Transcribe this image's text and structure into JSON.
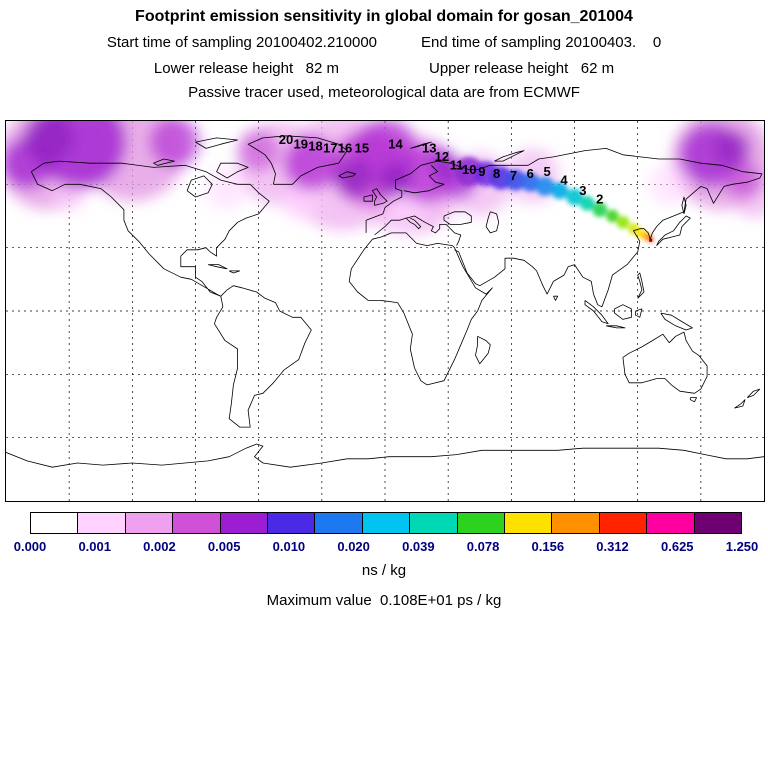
{
  "header": {
    "title": "Footprint emission sensitivity in global domain for gosan_201004",
    "start_time": "Start time of sampling 20100402.210000",
    "end_time": "End time of sampling 20100403.    0",
    "lower_release": "Lower release height   82 m",
    "upper_release": "Upper release height   62 m",
    "tracer_line": "Passive tracer used, meteorological data are from ECMWF"
  },
  "colorbar": {
    "tick_labels": [
      "0.000",
      "0.001",
      "0.002",
      "0.005",
      "0.010",
      "0.020",
      "0.039",
      "0.078",
      "0.156",
      "0.312",
      "0.625",
      "1.250"
    ],
    "colors": [
      "#ffffff",
      "#ffd2ff",
      "#efa0ef",
      "#d050d8",
      "#9c1ed2",
      "#4b2ae6",
      "#1e78f0",
      "#00c3f0",
      "#00d7b4",
      "#2dd21e",
      "#ffe100",
      "#ff9100",
      "#ff2300",
      "#ff00a0",
      "#6e0073"
    ],
    "units": "ns / kg"
  },
  "footer": {
    "max_value": "Maximum value  0.108E+01 ps / kg"
  },
  "chart_data": {
    "type": "heatmap",
    "title": "Footprint emission sensitivity in global domain for gosan_201004",
    "station": "gosan_201004",
    "projection": "equirectangular, global domain lon -180..180, lat -90..90",
    "grid": {
      "lon_step_deg": 30,
      "lat_step_deg": 30,
      "style": "dashed",
      "grid_on": true
    },
    "colorbar_levels": [
      0.0,
      0.001,
      0.002,
      0.005,
      0.01,
      0.02,
      0.039,
      0.078,
      0.156,
      0.312,
      0.625,
      1.25
    ],
    "units": "ns / kg",
    "max_value_text": "0.108E+01 ps / kg",
    "sampling": {
      "start": "20100402.210000",
      "end": "20100403.    0"
    },
    "release_heights_m": {
      "lower": 82,
      "upper": 62
    },
    "meteorology": "ECMWF",
    "tracer": "Passive tracer",
    "plume_description": "Backward footprint plume: maximum (red/yellow) at Gosan, Korea (~126E,34N), trail of decreasing sensitivity (green-cyan-blue-purple) extending WNW across Siberia and Europe; broad low-value magenta/purple field over high northern latitudes, North Atlantic and Arctic.",
    "trajectory_labels": [
      {
        "label": "20",
        "lon": -47,
        "lat": 79
      },
      {
        "label": "19",
        "lon": -40,
        "lat": 77
      },
      {
        "label": "18",
        "lon": -33,
        "lat": 76
      },
      {
        "label": "17",
        "lon": -26,
        "lat": 75
      },
      {
        "label": "16",
        "lon": -19,
        "lat": 75
      },
      {
        "label": "15",
        "lon": -11,
        "lat": 75
      },
      {
        "label": "14",
        "lon": 5,
        "lat": 77
      },
      {
        "label": "13",
        "lon": 21,
        "lat": 75
      },
      {
        "label": "12",
        "lon": 27,
        "lat": 71
      },
      {
        "label": "11",
        "lon": 34,
        "lat": 67
      },
      {
        "label": "10",
        "lon": 40,
        "lat": 65
      },
      {
        "label": "9",
        "lon": 46,
        "lat": 64
      },
      {
        "label": "8",
        "lon": 53,
        "lat": 63
      },
      {
        "label": "7",
        "lon": 61,
        "lat": 62
      },
      {
        "label": "6",
        "lon": 69,
        "lat": 63
      },
      {
        "label": "5",
        "lon": 77,
        "lat": 64
      },
      {
        "label": "4",
        "lon": 85,
        "lat": 60
      },
      {
        "label": "3",
        "lon": 94,
        "lat": 55
      },
      {
        "label": "2",
        "lon": 102,
        "lat": 51
      }
    ],
    "station_marker": {
      "lon": 126.2,
      "lat": 33.5
    }
  }
}
